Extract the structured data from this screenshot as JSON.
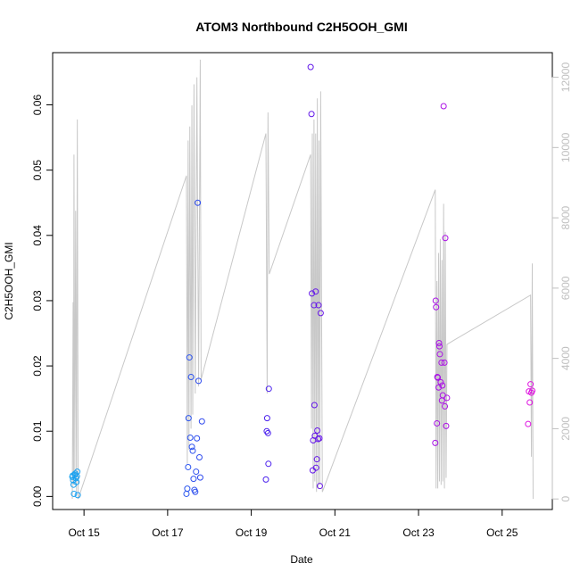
{
  "chart_data": {
    "type": "scatter",
    "title": "ATOM3 Northbound C2H5OOH_GMI",
    "xlabel": "Date",
    "ylabel": "C2H5OOH_GMI",
    "x_unit": "days in October (fractional)",
    "xlim": [
      14.25,
      26.2
    ],
    "ylim": [
      -0.002,
      0.068
    ],
    "y2lim": [
      -300,
      12700
    ],
    "x_ticks": [
      {
        "value": 15,
        "label": "Oct 15"
      },
      {
        "value": 17,
        "label": "Oct 17"
      },
      {
        "value": 19,
        "label": "Oct 19"
      },
      {
        "value": 21,
        "label": "Oct 21"
      },
      {
        "value": 23,
        "label": "Oct 23"
      },
      {
        "value": 25,
        "label": "Oct 25"
      }
    ],
    "y_ticks": [
      {
        "value": 0.0,
        "label": "0.00"
      },
      {
        "value": 0.01,
        "label": "0.01"
      },
      {
        "value": 0.02,
        "label": "0.02"
      },
      {
        "value": 0.03,
        "label": "0.03"
      },
      {
        "value": 0.04,
        "label": "0.04"
      },
      {
        "value": 0.05,
        "label": "0.05"
      },
      {
        "value": 0.06,
        "label": "0.06"
      }
    ],
    "y2_ticks": [
      {
        "value": 0,
        "label": "0"
      },
      {
        "value": 2000,
        "label": "2000"
      },
      {
        "value": 4000,
        "label": "4000"
      },
      {
        "value": 6000,
        "label": "6000"
      },
      {
        "value": 8000,
        "label": "8000"
      },
      {
        "value": 10000,
        "label": "10000"
      },
      {
        "value": 12000,
        "label": "12000"
      }
    ],
    "colors": {
      "secondary_line": "#c8c8c8",
      "axis": "#000000",
      "secondary_axis": "#bfbfbf",
      "point_palette": [
        "#1aa3f0",
        "#2266ee",
        "#4422ee",
        "#7711e6",
        "#aa11e6",
        "#e011e0"
      ]
    },
    "secondary_series": {
      "name": "altitude",
      "type": "line",
      "points": [
        [
          14.72,
          0
        ],
        [
          14.74,
          5600
        ],
        [
          14.75,
          400
        ],
        [
          14.76,
          9800
        ],
        [
          14.78,
          600
        ],
        [
          14.8,
          8200
        ],
        [
          14.82,
          200
        ],
        [
          14.84,
          10800
        ],
        [
          14.86,
          0
        ],
        [
          17.45,
          9200
        ],
        [
          17.47,
          1000
        ],
        [
          17.49,
          10200
        ],
        [
          17.51,
          1400
        ],
        [
          17.53,
          10600
        ],
        [
          17.56,
          2000
        ],
        [
          17.58,
          11200
        ],
        [
          17.6,
          2400
        ],
        [
          17.63,
          11800
        ],
        [
          17.66,
          3000
        ],
        [
          17.7,
          12000
        ],
        [
          17.74,
          3200
        ],
        [
          17.78,
          12500
        ],
        [
          17.8,
          3400
        ],
        [
          19.35,
          10400
        ],
        [
          19.38,
          3000
        ],
        [
          19.4,
          11000
        ],
        [
          19.43,
          6400
        ],
        [
          20.42,
          9800
        ],
        [
          20.44,
          2000
        ],
        [
          20.46,
          10400
        ],
        [
          20.48,
          300
        ],
        [
          20.5,
          10800
        ],
        [
          20.52,
          500
        ],
        [
          20.54,
          10400
        ],
        [
          20.56,
          200
        ],
        [
          20.58,
          11400
        ],
        [
          20.6,
          300
        ],
        [
          20.62,
          10200
        ],
        [
          20.64,
          400
        ],
        [
          20.66,
          11600
        ],
        [
          20.7,
          200
        ],
        [
          23.4,
          8800
        ],
        [
          23.42,
          300
        ],
        [
          23.44,
          6200
        ],
        [
          23.46,
          300
        ],
        [
          23.48,
          7000
        ],
        [
          23.5,
          500
        ],
        [
          23.52,
          7400
        ],
        [
          23.54,
          400
        ],
        [
          23.56,
          6800
        ],
        [
          23.58,
          500
        ],
        [
          23.6,
          8400
        ],
        [
          23.62,
          300
        ],
        [
          23.64,
          7600
        ],
        [
          23.66,
          600
        ],
        [
          23.68,
          4400
        ],
        [
          25.68,
          5800
        ],
        [
          25.7,
          1200
        ],
        [
          25.72,
          6700
        ],
        [
          25.74,
          0
        ]
      ]
    },
    "points": [
      {
        "x": 14.72,
        "y": 0.003
      },
      {
        "x": 14.73,
        "y": 0.0032
      },
      {
        "x": 14.74,
        "y": 0.0025
      },
      {
        "x": 14.75,
        "y": 0.0018
      },
      {
        "x": 14.76,
        "y": 0.0004
      },
      {
        "x": 14.78,
        "y": 0.0033
      },
      {
        "x": 14.79,
        "y": 0.0035
      },
      {
        "x": 14.81,
        "y": 0.0028
      },
      {
        "x": 14.82,
        "y": 0.0022
      },
      {
        "x": 14.83,
        "y": 0.0031
      },
      {
        "x": 14.84,
        "y": 0.0038
      },
      {
        "x": 14.85,
        "y": 0.0002
      },
      {
        "x": 17.45,
        "y": 0.0004
      },
      {
        "x": 17.47,
        "y": 0.0012
      },
      {
        "x": 17.49,
        "y": 0.0045
      },
      {
        "x": 17.5,
        "y": 0.012
      },
      {
        "x": 17.52,
        "y": 0.0213
      },
      {
        "x": 17.54,
        "y": 0.009
      },
      {
        "x": 17.56,
        "y": 0.0183
      },
      {
        "x": 17.58,
        "y": 0.0076
      },
      {
        "x": 17.6,
        "y": 0.007
      },
      {
        "x": 17.62,
        "y": 0.0027
      },
      {
        "x": 17.64,
        "y": 0.001
      },
      {
        "x": 17.66,
        "y": 0.0007
      },
      {
        "x": 17.68,
        "y": 0.0038
      },
      {
        "x": 17.7,
        "y": 0.0089
      },
      {
        "x": 17.72,
        "y": 0.045
      },
      {
        "x": 17.74,
        "y": 0.0177
      },
      {
        "x": 17.76,
        "y": 0.006
      },
      {
        "x": 17.78,
        "y": 0.0029
      },
      {
        "x": 17.82,
        "y": 0.0115
      },
      {
        "x": 19.35,
        "y": 0.0026
      },
      {
        "x": 19.37,
        "y": 0.01
      },
      {
        "x": 19.38,
        "y": 0.012
      },
      {
        "x": 19.4,
        "y": 0.0097
      },
      {
        "x": 19.41,
        "y": 0.005
      },
      {
        "x": 19.42,
        "y": 0.0165
      },
      {
        "x": 20.42,
        "y": 0.0658
      },
      {
        "x": 20.44,
        "y": 0.0586
      },
      {
        "x": 20.45,
        "y": 0.0311
      },
      {
        "x": 20.47,
        "y": 0.004
      },
      {
        "x": 20.48,
        "y": 0.0086
      },
      {
        "x": 20.5,
        "y": 0.0293
      },
      {
        "x": 20.51,
        "y": 0.014
      },
      {
        "x": 20.52,
        "y": 0.0093
      },
      {
        "x": 20.54,
        "y": 0.0314
      },
      {
        "x": 20.55,
        "y": 0.0044
      },
      {
        "x": 20.57,
        "y": 0.0057
      },
      {
        "x": 20.58,
        "y": 0.0101
      },
      {
        "x": 20.6,
        "y": 0.0088
      },
      {
        "x": 20.61,
        "y": 0.0293
      },
      {
        "x": 20.63,
        "y": 0.0089
      },
      {
        "x": 20.64,
        "y": 0.0016
      },
      {
        "x": 20.66,
        "y": 0.0281
      },
      {
        "x": 23.4,
        "y": 0.0082
      },
      {
        "x": 23.41,
        "y": 0.03
      },
      {
        "x": 23.42,
        "y": 0.029
      },
      {
        "x": 23.44,
        "y": 0.0112
      },
      {
        "x": 23.45,
        "y": 0.0183
      },
      {
        "x": 23.46,
        "y": 0.0182
      },
      {
        "x": 23.48,
        "y": 0.0167
      },
      {
        "x": 23.49,
        "y": 0.0235
      },
      {
        "x": 23.5,
        "y": 0.023
      },
      {
        "x": 23.51,
        "y": 0.0218
      },
      {
        "x": 23.53,
        "y": 0.0175
      },
      {
        "x": 23.55,
        "y": 0.0205
      },
      {
        "x": 23.56,
        "y": 0.0147
      },
      {
        "x": 23.57,
        "y": 0.017
      },
      {
        "x": 23.58,
        "y": 0.0155
      },
      {
        "x": 23.6,
        "y": 0.0598
      },
      {
        "x": 23.62,
        "y": 0.0205
      },
      {
        "x": 23.63,
        "y": 0.0138
      },
      {
        "x": 23.64,
        "y": 0.0396
      },
      {
        "x": 23.66,
        "y": 0.0108
      },
      {
        "x": 23.68,
        "y": 0.0151
      },
      {
        "x": 25.62,
        "y": 0.0111
      },
      {
        "x": 25.64,
        "y": 0.0161
      },
      {
        "x": 25.66,
        "y": 0.0144
      },
      {
        "x": 25.68,
        "y": 0.0172
      },
      {
        "x": 25.7,
        "y": 0.0159
      },
      {
        "x": 25.72,
        "y": 0.0162
      }
    ]
  }
}
